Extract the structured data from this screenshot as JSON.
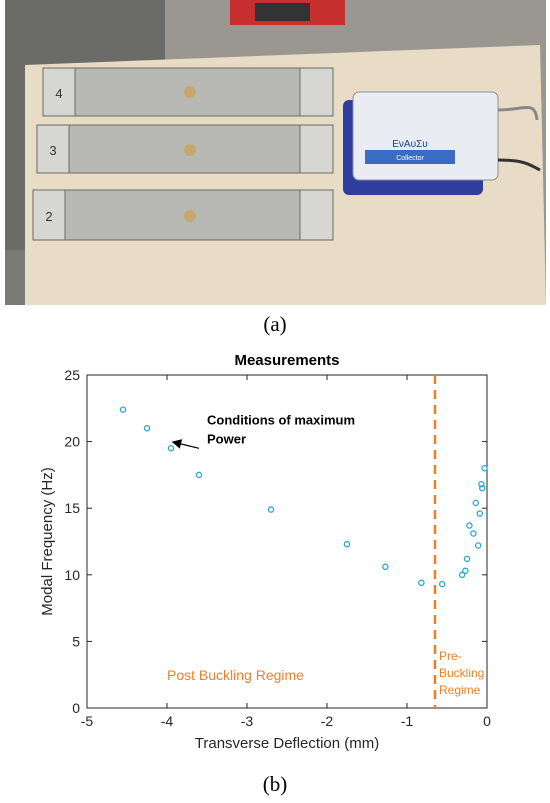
{
  "captions": {
    "a": "(a)",
    "b": "(b)"
  },
  "photo": {
    "panel_numbers": [
      "4",
      "3",
      "2"
    ],
    "box_label": "ΕνΑυΣυ",
    "box_sublabel": "Collector"
  },
  "chart_data": {
    "type": "scatter",
    "title": "Measurements",
    "xlabel": "Transverse Deflection (mm)",
    "ylabel": "Modal Frequency (Hz)",
    "xlim": [
      -5,
      0
    ],
    "ylim": [
      0,
      25
    ],
    "xticks": [
      -5,
      -4,
      -3,
      -2,
      -1,
      0
    ],
    "yticks": [
      0,
      5,
      10,
      15,
      20,
      25
    ],
    "grid": false,
    "marker_color": "#2aa6d4",
    "line_color": "#f07e26",
    "series": [
      {
        "x": [
          -4.55,
          -4.25,
          -3.95,
          -3.6,
          -2.7,
          -1.75,
          -1.27,
          -0.82,
          -0.56,
          -0.31,
          -0.27,
          -0.25,
          -0.22,
          -0.17,
          -0.14,
          -0.11,
          -0.09,
          -0.07,
          -0.06,
          -0.03
        ],
        "y": [
          22.4,
          21.0,
          19.5,
          17.5,
          14.9,
          12.3,
          10.6,
          9.4,
          9.3,
          10.0,
          10.3,
          11.2,
          13.7,
          13.1,
          15.4,
          12.2,
          14.6,
          16.8,
          16.5,
          18.0
        ]
      }
    ],
    "vline": {
      "x": -0.65
    },
    "annotations": [
      {
        "text_lines": [
          "Conditions of maximum",
          "Power"
        ],
        "x": -3.5,
        "y": 21.3,
        "arrow_to": [
          -3.95,
          19.8
        ]
      },
      {
        "text_lines": [
          "Post Buckling Regime"
        ],
        "x": -4.0,
        "y": 2.1
      },
      {
        "text_lines": [
          "Pre-",
          "Buckling",
          "Regime"
        ],
        "x": -0.6,
        "y": 3.6
      }
    ]
  }
}
